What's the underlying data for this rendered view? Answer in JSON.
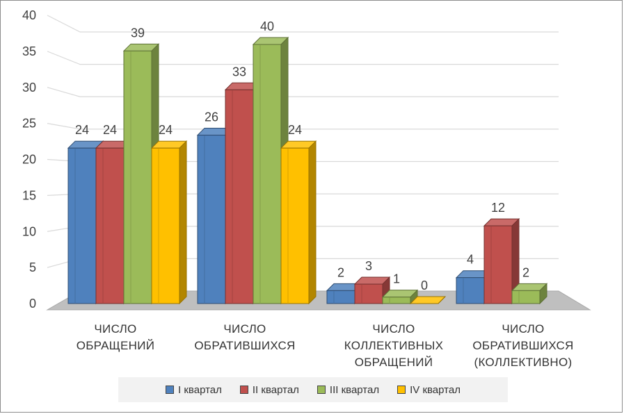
{
  "chart_data": {
    "type": "bar",
    "categories": [
      [
        "ЧИСЛО",
        "ОБРАЩЕНИЙ"
      ],
      [
        "ЧИСЛО",
        "ОБРАТИВШИХСЯ"
      ],
      [
        "ЧИСЛО",
        "КОЛЛЕКТИВНЫХ",
        "ОБРАЩЕНИЙ"
      ],
      [
        "ЧИСЛО",
        "ОБРАТИВШИХСЯ",
        "(КОЛЛЕКТИВНО)"
      ]
    ],
    "series": [
      {
        "name": "I квартал",
        "color": "#4f81bd",
        "values": [
          24,
          26,
          2,
          4
        ]
      },
      {
        "name": "II квартал",
        "color": "#c0504d",
        "values": [
          24,
          33,
          3,
          12
        ]
      },
      {
        "name": "III квартал",
        "color": "#9bbb59",
        "values": [
          39,
          40,
          1,
          2
        ]
      },
      {
        "name": "IV квартал",
        "color": "#ffc000",
        "values": [
          24,
          24,
          0,
          null
        ]
      }
    ],
    "data_labels": [
      [
        "24",
        "26",
        "2",
        "4"
      ],
      [
        "24",
        "33",
        "3",
        "12"
      ],
      [
        "39",
        "40",
        "1",
        "2"
      ],
      [
        "24",
        "24",
        "0",
        ""
      ]
    ],
    "ylim": [
      0,
      40
    ],
    "yticks": [
      "0",
      "5",
      "10",
      "15",
      "20",
      "25",
      "30",
      "35",
      "40"
    ],
    "grid": true,
    "legend_position": "bottom",
    "title": "",
    "xlabel": "",
    "ylabel": ""
  }
}
